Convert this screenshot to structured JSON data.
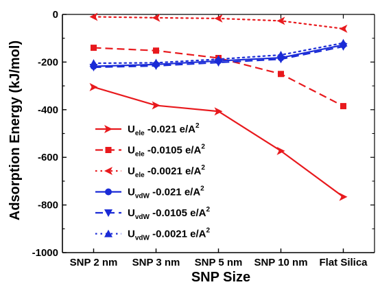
{
  "chart_data": {
    "type": "line",
    "categories": [
      "SNP 2 nm",
      "SNP 3 nm",
      "SNP 5 nm",
      "SNP 10 nm",
      "Flat Silica"
    ],
    "xlabel": "SNP Size",
    "ylabel": "Adsorption Energy (kJ/mol)",
    "ylim": [
      -1000,
      0
    ],
    "yticks": [
      0,
      -200,
      -400,
      -600,
      -800,
      -1000
    ],
    "series": [
      {
        "key": "ele_021",
        "name": "U",
        "name_sub": "ele",
        "name_rest": " -0.021 e/A",
        "name_sup": "2",
        "color": "#e8191d",
        "style": "solid",
        "marker": "arrow-right",
        "values": [
          -305,
          -382,
          -407,
          -573,
          -766
        ]
      },
      {
        "key": "ele_0105",
        "name": "U",
        "name_sub": "ele",
        "name_rest": " -0.0105 e/A",
        "name_sup": "2",
        "color": "#e8191d",
        "style": "dash",
        "marker": "square",
        "values": [
          -140,
          -152,
          -183,
          -250,
          -385
        ]
      },
      {
        "key": "ele_0021",
        "name": "U",
        "name_sub": "ele",
        "name_rest": " -0.0021 e/A",
        "name_sup": "2",
        "color": "#e8191d",
        "style": "dot",
        "marker": "arrow-left",
        "values": [
          -10,
          -14,
          -17,
          -27,
          -60
        ]
      },
      {
        "key": "vdw_021",
        "name": "U",
        "name_sub": "vdW",
        "name_rest": " -0.021 e/A",
        "name_sup": "2",
        "color": "#1a2bd6",
        "style": "solid",
        "marker": "circle",
        "values": [
          -218,
          -210,
          -195,
          -182,
          -128
        ]
      },
      {
        "key": "vdw_0105",
        "name": "U",
        "name_sub": "vdW",
        "name_rest": " -0.0105 e/A",
        "name_sup": "2",
        "color": "#1a2bd6",
        "style": "dash",
        "marker": "triangle-down",
        "values": [
          -222,
          -216,
          -202,
          -188,
          -135
        ]
      },
      {
        "key": "vdw_0021",
        "name": "U",
        "name_sub": "vdW",
        "name_rest": " -0.0021 e/A",
        "name_sup": "2",
        "color": "#1a2bd6",
        "style": "dot",
        "marker": "triangle-up",
        "values": [
          -205,
          -203,
          -188,
          -170,
          -120
        ]
      }
    ],
    "legend_position": "bottom-left",
    "grid": false
  }
}
